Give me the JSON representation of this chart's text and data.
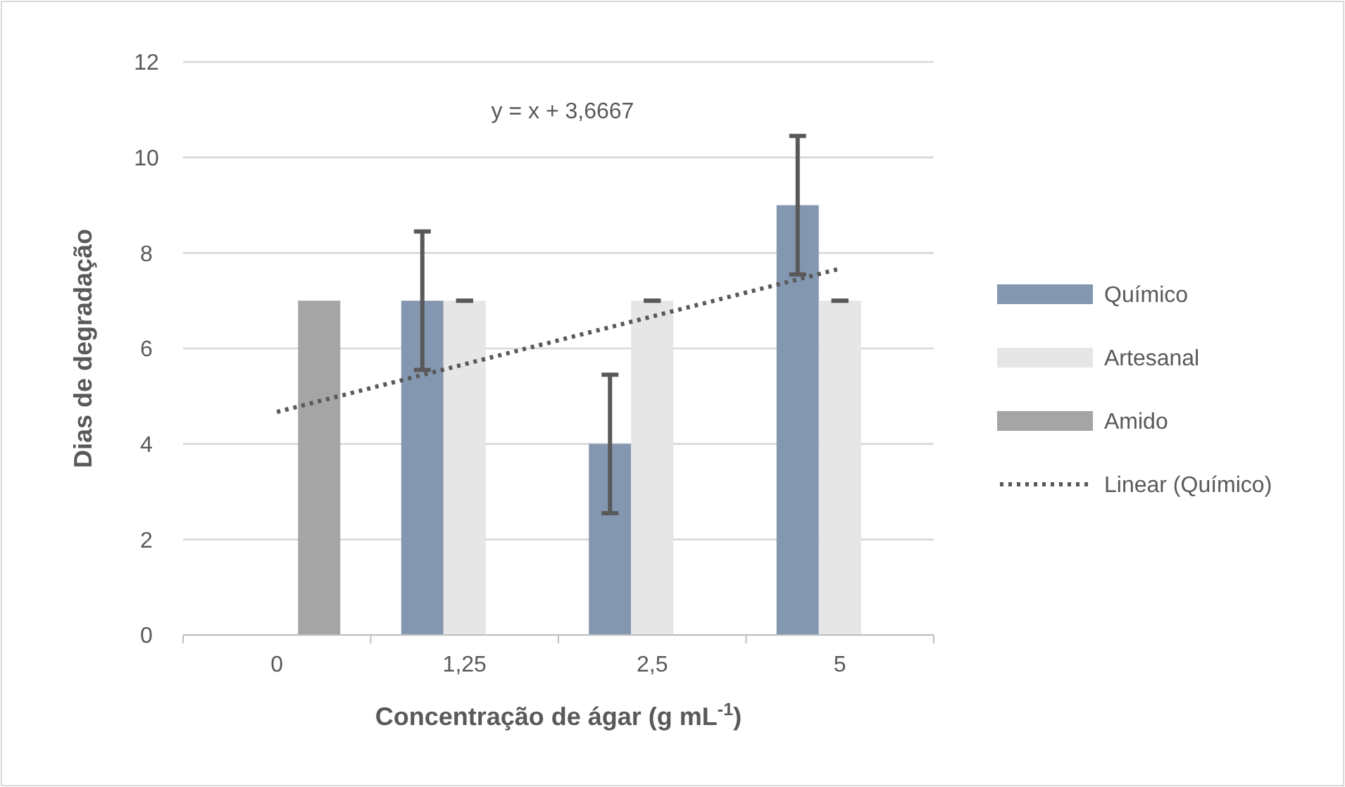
{
  "chart_data": {
    "type": "bar",
    "ylabel": "Dias de degradação",
    "xlabel": "Concentração de ágar (g mL$^{-1}$)",
    "categories": [
      "0",
      "1,25",
      "2,5",
      "5"
    ],
    "series": [
      {
        "name": "Químico",
        "color": "#8497b0",
        "values": [
          null,
          7,
          4,
          9
        ],
        "errors": [
          null,
          1.45,
          1.45,
          1.45
        ]
      },
      {
        "name": "Artesanal",
        "color": "#e7e6e6",
        "values": [
          null,
          7,
          7,
          7
        ],
        "errors": [
          null,
          0,
          0,
          0
        ]
      },
      {
        "name": "Amido",
        "color": "#a5a5a5",
        "values": [
          7,
          null,
          null,
          null
        ]
      },
      {
        "name": "Linear (Químico)",
        "type": "line",
        "color": "#595959",
        "line_style": "dotted",
        "values": [
          4.67,
          5.67,
          6.67,
          7.67
        ]
      }
    ],
    "annotations": [
      "y = x + 3,6667"
    ],
    "ylim": [
      0,
      12
    ],
    "yticks": [
      0,
      2,
      4,
      6,
      8,
      10,
      12
    ],
    "grid": "y",
    "legend": "right"
  }
}
